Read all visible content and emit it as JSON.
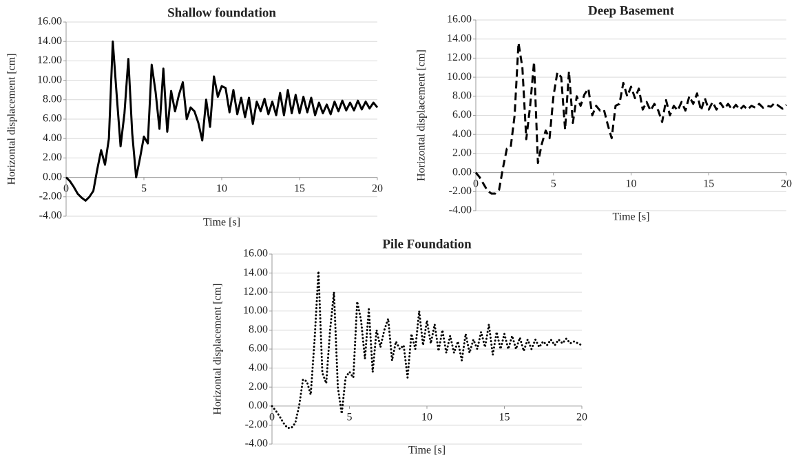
{
  "chart_data": [
    {
      "type": "line",
      "title": "Shallow foundation",
      "x_label": "Time [s]",
      "y_label": "Horizontal displacement [cm]",
      "line_style": "solid",
      "color": "#000000",
      "grid": true,
      "xlim": [
        0,
        20
      ],
      "xticks": [
        0,
        5,
        10,
        15,
        20
      ],
      "ylim": [
        -4,
        16
      ],
      "yticks": [
        {
          "value": -4,
          "label": "-4.00"
        },
        {
          "value": -2,
          "label": "-2.00"
        },
        {
          "value": 0,
          "label": "0.00"
        },
        {
          "value": 2,
          "label": "2.00"
        },
        {
          "value": 4,
          "label": "4.00"
        },
        {
          "value": 6,
          "label": "6.00"
        },
        {
          "value": 8,
          "label": "8.00"
        },
        {
          "value": 10,
          "label": "10.00"
        },
        {
          "value": 12,
          "label": "12.00"
        },
        {
          "value": 14,
          "label": "14.00"
        },
        {
          "value": 16,
          "label": "16.00"
        }
      ],
      "x": [
        0,
        0.25,
        0.5,
        0.75,
        1,
        1.25,
        1.5,
        1.75,
        2,
        2.25,
        2.5,
        2.75,
        3,
        3.25,
        3.5,
        3.75,
        4,
        4.25,
        4.5,
        4.75,
        5,
        5.25,
        5.5,
        5.75,
        6,
        6.25,
        6.5,
        6.75,
        7,
        7.25,
        7.5,
        7.75,
        8,
        8.25,
        8.5,
        8.75,
        9,
        9.25,
        9.5,
        9.75,
        10,
        10.25,
        10.5,
        10.75,
        11,
        11.25,
        11.5,
        11.75,
        12,
        12.25,
        12.5,
        12.75,
        13,
        13.25,
        13.5,
        13.75,
        14,
        14.25,
        14.5,
        14.75,
        15,
        15.25,
        15.5,
        15.75,
        16,
        16.25,
        16.5,
        16.75,
        17,
        17.25,
        17.5,
        17.75,
        18,
        18.25,
        18.5,
        18.75,
        19,
        19.25,
        19.5,
        19.75,
        20
      ],
      "values": [
        0,
        -0.4,
        -1.0,
        -1.7,
        -2.1,
        -2.4,
        -2.0,
        -1.4,
        0.8,
        2.8,
        1.3,
        4.0,
        14.0,
        8.5,
        3.2,
        6.6,
        12.2,
        4.5,
        0.0,
        2.0,
        4.2,
        3.5,
        11.6,
        8.8,
        5.0,
        11.2,
        4.7,
        8.9,
        6.8,
        8.5,
        9.8,
        6.0,
        7.2,
        6.8,
        5.6,
        3.8,
        8.0,
        5.2,
        10.4,
        8.3,
        9.4,
        9.2,
        6.7,
        9.0,
        6.5,
        8.2,
        6.2,
        8.2,
        5.5,
        7.8,
        6.8,
        8.1,
        6.5,
        7.8,
        6.4,
        8.7,
        6.4,
        9.0,
        6.6,
        8.5,
        6.6,
        8.3,
        6.7,
        8.2,
        6.4,
        7.7,
        6.6,
        7.5,
        6.5,
        7.8,
        6.8,
        7.9,
        6.9,
        7.7,
        6.9,
        7.9,
        7.0,
        7.8,
        7.1,
        7.7,
        7.2
      ]
    },
    {
      "type": "line",
      "title": "Deep Basement",
      "x_label": "Time [s]",
      "y_label": "Horizontal displacement [cm]",
      "line_style": "dashed",
      "color": "#000000",
      "grid": true,
      "xlim": [
        0,
        20
      ],
      "xticks": [
        0,
        5,
        10,
        15,
        20
      ],
      "ylim": [
        -4,
        16
      ],
      "yticks": [
        {
          "value": -4,
          "label": "-4.00"
        },
        {
          "value": -2,
          "label": "-2.00"
        },
        {
          "value": 0,
          "label": "0.00"
        },
        {
          "value": 2,
          "label": "2.00"
        },
        {
          "value": 4,
          "label": "4.00"
        },
        {
          "value": 6,
          "label": "6.00"
        },
        {
          "value": 8,
          "label": "8.00"
        },
        {
          "value": 10,
          "label": "10.00"
        },
        {
          "value": 12,
          "label": "12.00"
        },
        {
          "value": 14,
          "label": "14.00"
        },
        {
          "value": 16,
          "label": "16.00"
        }
      ],
      "x": [
        0,
        0.25,
        0.5,
        0.75,
        1,
        1.25,
        1.5,
        1.75,
        2,
        2.25,
        2.5,
        2.75,
        3,
        3.25,
        3.5,
        3.75,
        4,
        4.25,
        4.5,
        4.75,
        5,
        5.25,
        5.5,
        5.75,
        6,
        6.25,
        6.5,
        6.75,
        7,
        7.25,
        7.5,
        7.75,
        8,
        8.25,
        8.5,
        8.75,
        9,
        9.25,
        9.5,
        9.75,
        10,
        10.25,
        10.5,
        10.75,
        11,
        11.25,
        11.5,
        11.75,
        12,
        12.25,
        12.5,
        12.75,
        13,
        13.25,
        13.5,
        13.75,
        14,
        14.25,
        14.5,
        14.75,
        15,
        15.25,
        15.5,
        15.75,
        16,
        16.25,
        16.5,
        16.75,
        17,
        17.25,
        17.5,
        17.75,
        18,
        18.25,
        18.5,
        18.75,
        19,
        19.25,
        19.5,
        19.75,
        20
      ],
      "values": [
        0,
        -0.5,
        -1.2,
        -1.9,
        -2.2,
        -2.2,
        -1.8,
        0.5,
        2.5,
        2.7,
        6.0,
        13.6,
        11.0,
        3.5,
        7.0,
        11.6,
        1.0,
        3.0,
        4.4,
        3.6,
        8.0,
        10.5,
        10.0,
        4.5,
        10.6,
        5.2,
        8.0,
        7.0,
        8.2,
        8.8,
        6.0,
        7.0,
        6.5,
        6.6,
        5.0,
        3.6,
        7.0,
        7.2,
        9.4,
        8.0,
        9.0,
        7.8,
        8.8,
        6.6,
        7.4,
        6.5,
        7.2,
        6.5,
        5.3,
        7.6,
        6.0,
        7.0,
        6.5,
        7.4,
        6.5,
        8.0,
        7.2,
        8.3,
        6.5,
        7.8,
        6.6,
        7.4,
        6.6,
        7.3,
        6.7,
        7.2,
        6.6,
        7.1,
        6.6,
        7.0,
        6.6,
        7.0,
        6.8,
        7.2,
        6.8,
        7.0,
        6.9,
        7.3,
        7.0,
        6.7,
        7.1
      ]
    },
    {
      "type": "line",
      "title": "Pile Foundation",
      "x_label": "Time [s]",
      "y_label": "Horizontal displacement [cm]",
      "line_style": "dotted",
      "color": "#000000",
      "grid": true,
      "xlim": [
        0,
        20
      ],
      "xticks": [
        0,
        5,
        10,
        15,
        20
      ],
      "ylim": [
        -4,
        16
      ],
      "yticks": [
        {
          "value": -4,
          "label": "-4.00"
        },
        {
          "value": -2,
          "label": "-2.00"
        },
        {
          "value": 0,
          "label": "0.00"
        },
        {
          "value": 2,
          "label": "2.00"
        },
        {
          "value": 4,
          "label": "4.00"
        },
        {
          "value": 6,
          "label": "6.00"
        },
        {
          "value": 8,
          "label": "8.00"
        },
        {
          "value": 10,
          "label": "10.00"
        },
        {
          "value": 12,
          "label": "12.00"
        },
        {
          "value": 14,
          "label": "14.00"
        },
        {
          "value": 16,
          "label": "16.00"
        }
      ],
      "x": [
        0,
        0.25,
        0.5,
        0.75,
        1,
        1.25,
        1.5,
        1.75,
        2,
        2.25,
        2.5,
        2.75,
        3,
        3.25,
        3.5,
        3.75,
        4,
        4.25,
        4.5,
        4.75,
        5,
        5.25,
        5.5,
        5.75,
        6,
        6.25,
        6.5,
        6.75,
        7,
        7.25,
        7.5,
        7.75,
        8,
        8.25,
        8.5,
        8.75,
        9,
        9.25,
        9.5,
        9.75,
        10,
        10.25,
        10.5,
        10.75,
        11,
        11.25,
        11.5,
        11.75,
        12,
        12.25,
        12.5,
        12.75,
        13,
        13.25,
        13.5,
        13.75,
        14,
        14.25,
        14.5,
        14.75,
        15,
        15.25,
        15.5,
        15.75,
        16,
        16.25,
        16.5,
        16.75,
        17,
        17.25,
        17.5,
        17.75,
        18,
        18.25,
        18.5,
        18.75,
        19,
        19.25,
        19.5,
        19.75,
        20
      ],
      "values": [
        0,
        -0.5,
        -1.1,
        -1.8,
        -2.3,
        -2.3,
        -1.8,
        0.0,
        2.8,
        2.6,
        1.2,
        7.0,
        14.2,
        3.5,
        2.4,
        8.0,
        12.0,
        2.0,
        -0.8,
        3.0,
        3.6,
        3.0,
        11.0,
        9.0,
        5.0,
        10.2,
        3.6,
        8.0,
        6.2,
        8.0,
        9.2,
        4.8,
        6.8,
        6.0,
        6.4,
        3.0,
        7.6,
        6.0,
        10.0,
        6.4,
        9.0,
        6.6,
        8.6,
        5.8,
        8.0,
        5.6,
        7.4,
        5.6,
        6.8,
        4.8,
        7.6,
        5.6,
        7.0,
        6.0,
        7.8,
        6.2,
        8.6,
        5.4,
        7.8,
        6.0,
        7.6,
        6.0,
        7.4,
        6.0,
        7.2,
        5.8,
        7.0,
        6.0,
        7.0,
        6.2,
        6.8,
        6.4,
        7.0,
        6.4,
        7.0,
        6.6,
        7.1,
        6.6,
        6.8,
        6.6,
        6.4
      ]
    }
  ]
}
